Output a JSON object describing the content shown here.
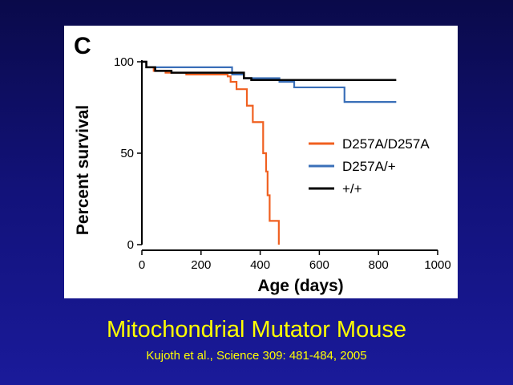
{
  "slide": {
    "title": "Mitochondrial Mutator Mouse",
    "citation": "Kujoth et al., Science 309: 481-484, 2005"
  },
  "chart_data": {
    "type": "line",
    "step": true,
    "panel_label": "C",
    "xlabel": "Age (days)",
    "ylabel": "Percent survival",
    "xlim": [
      0,
      1000
    ],
    "ylim": [
      0,
      100
    ],
    "xticks": [
      0,
      200,
      400,
      600,
      800,
      1000
    ],
    "yticks": [
      0,
      50,
      100
    ],
    "grid": false,
    "legend_position": "right",
    "series": [
      {
        "name": "D257A/D257A",
        "color": "#f06020",
        "points": [
          [
            0,
            100
          ],
          [
            15,
            97
          ],
          [
            40,
            95
          ],
          [
            80,
            94
          ],
          [
            150,
            93
          ],
          [
            250,
            93
          ],
          [
            290,
            92
          ],
          [
            300,
            89
          ],
          [
            320,
            85
          ],
          [
            350,
            85
          ],
          [
            355,
            76
          ],
          [
            375,
            67
          ],
          [
            400,
            67
          ],
          [
            410,
            50
          ],
          [
            420,
            40
          ],
          [
            425,
            27
          ],
          [
            432,
            13
          ],
          [
            460,
            13
          ],
          [
            463,
            0
          ]
        ]
      },
      {
        "name": "D257A/+",
        "color": "#3a6fb8",
        "points": [
          [
            0,
            100
          ],
          [
            15,
            97
          ],
          [
            150,
            97
          ],
          [
            300,
            97
          ],
          [
            305,
            93
          ],
          [
            340,
            93
          ],
          [
            345,
            91
          ],
          [
            460,
            91
          ],
          [
            465,
            89
          ],
          [
            510,
            89
          ],
          [
            515,
            86
          ],
          [
            680,
            86
          ],
          [
            685,
            78
          ],
          [
            860,
            78
          ]
        ]
      },
      {
        "name": "+/+",
        "color": "#000000",
        "points": [
          [
            0,
            100
          ],
          [
            15,
            97
          ],
          [
            45,
            95
          ],
          [
            100,
            94
          ],
          [
            200,
            94
          ],
          [
            330,
            94
          ],
          [
            345,
            91
          ],
          [
            370,
            90
          ],
          [
            860,
            90
          ]
        ]
      }
    ]
  }
}
